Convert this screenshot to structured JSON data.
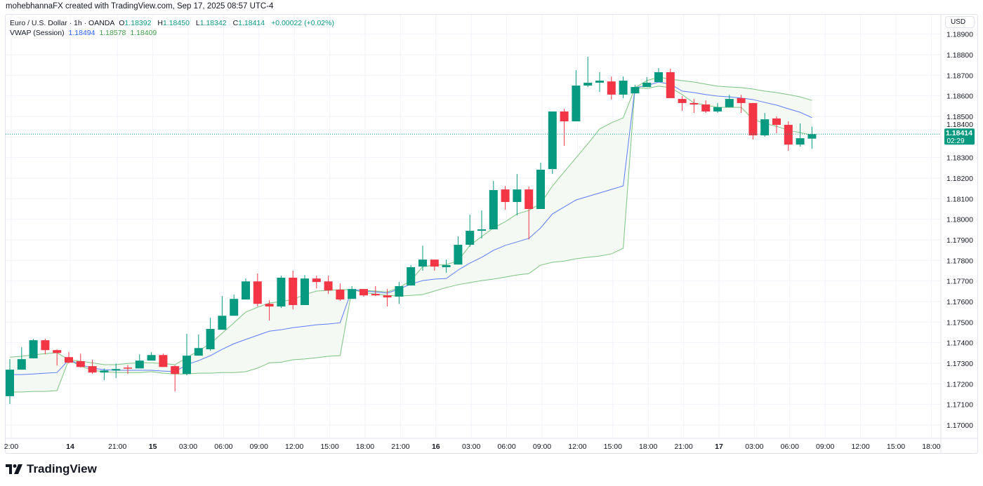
{
  "credit": "mohebhannaFX created with TradingView.com, Sep 17, 2025 08:57 UTC-4",
  "legend": {
    "symbol": "Euro / U.S. Dollar · 1h · OANDA",
    "o_label": "O",
    "o": "1.18392",
    "h_label": "H",
    "h": "1.18450",
    "l_label": "L",
    "l": "1.18342",
    "c_label": "C",
    "c": "1.18414",
    "change": "+0.00022 (+0.02%)",
    "indicator": "VWAP (Session)",
    "vwap": "1.18494",
    "upper": "1.18578",
    "lower": "1.18409"
  },
  "currency_button": "USD",
  "logo_text": "TradingView",
  "colors": {
    "up": "#089981",
    "down": "#f23645",
    "vwap": "#5b7cf7",
    "bands": "#7cc47f",
    "band_fill": "#f3faf2"
  },
  "chart_data": {
    "type": "candlestick",
    "symbol": "EURUSD",
    "interval": "1h",
    "ylim": [
      1.1695,
      1.18935
    ],
    "grid": true,
    "y_ticks": [
      "1.17000",
      "1.17100",
      "1.17200",
      "1.17300",
      "1.17400",
      "1.17500",
      "1.17600",
      "1.17700",
      "1.17800",
      "1.17900",
      "1.18000",
      "1.18100",
      "1.18200",
      "1.18300",
      "1.18400",
      "1.18500",
      "1.18600",
      "1.18700",
      "1.18800",
      "1.18900"
    ],
    "x_ticks": [
      {
        "label": "2:00",
        "bar": 0,
        "bold": false
      },
      {
        "label": "14",
        "bar": 5,
        "bold": true
      },
      {
        "label": "21:00",
        "bar": 9,
        "bold": false
      },
      {
        "label": "15",
        "bar": 12,
        "bold": true
      },
      {
        "label": "03:00",
        "bar": 15,
        "bold": false
      },
      {
        "label": "06:00",
        "bar": 18,
        "bold": false
      },
      {
        "label": "09:00",
        "bar": 21,
        "bold": false
      },
      {
        "label": "12:00",
        "bar": 24,
        "bold": false
      },
      {
        "label": "15:00",
        "bar": 27,
        "bold": false
      },
      {
        "label": "18:00",
        "bar": 30,
        "bold": false
      },
      {
        "label": "21:00",
        "bar": 33,
        "bold": false
      },
      {
        "label": "16",
        "bar": 36,
        "bold": true
      },
      {
        "label": "03:00",
        "bar": 39,
        "bold": false
      },
      {
        "label": "06:00",
        "bar": 42,
        "bold": false
      },
      {
        "label": "09:00",
        "bar": 45,
        "bold": false
      },
      {
        "label": "12:00",
        "bar": 48,
        "bold": false
      },
      {
        "label": "15:00",
        "bar": 51,
        "bold": false
      },
      {
        "label": "18:00",
        "bar": 54,
        "bold": false
      },
      {
        "label": "21:00",
        "bar": 57,
        "bold": false
      },
      {
        "label": "17",
        "bar": 60,
        "bold": true
      },
      {
        "label": "03:00",
        "bar": 63,
        "bold": false
      },
      {
        "label": "06:00",
        "bar": 66,
        "bold": false
      },
      {
        "label": "09:00",
        "bar": 69,
        "bold": false
      },
      {
        "label": "12:00",
        "bar": 72,
        "bold": false
      },
      {
        "label": "15:00",
        "bar": 75,
        "bold": false
      },
      {
        "label": "18:00",
        "bar": 78,
        "bold": false
      }
    ],
    "ohlc_fields": [
      "open",
      "high",
      "low",
      "close"
    ],
    "candles": [
      [
        1.1714,
        1.1732,
        1.17102,
        1.17269
      ],
      [
        1.17269,
        1.17378,
        1.17269,
        1.1732
      ],
      [
        1.17324,
        1.17418,
        1.17324,
        1.17412
      ],
      [
        1.17412,
        1.17419,
        1.17344,
        1.17364
      ],
      [
        1.17364,
        1.17367,
        1.17289,
        1.1735
      ],
      [
        1.1733,
        1.17354,
        1.17299,
        1.17303
      ],
      [
        1.1731,
        1.17347,
        1.17279,
        1.17282
      ],
      [
        1.17286,
        1.17317,
        1.17248,
        1.17255
      ],
      [
        1.17255,
        1.17275,
        1.17218,
        1.17265
      ],
      [
        1.17265,
        1.17299,
        1.17228,
        1.17272
      ],
      [
        1.17279,
        1.17292,
        1.17248,
        1.17275
      ],
      [
        1.17275,
        1.17344,
        1.17275,
        1.17313
      ],
      [
        1.17313,
        1.17354,
        1.17313,
        1.1734
      ],
      [
        1.1734,
        1.17347,
        1.17282,
        1.17282
      ],
      [
        1.17286,
        1.1729,
        1.17163,
        1.17248
      ],
      [
        1.17248,
        1.17443,
        1.17241,
        1.17337
      ],
      [
        1.17337,
        1.1744,
        1.17337,
        1.17374
      ],
      [
        1.17368,
        1.17521,
        1.17361,
        1.17467
      ],
      [
        1.17463,
        1.17627,
        1.17463,
        1.17531
      ],
      [
        1.17531,
        1.17634,
        1.17531,
        1.17613
      ],
      [
        1.1761,
        1.17712,
        1.1761,
        1.17698
      ],
      [
        1.17698,
        1.17736,
        1.17576,
        1.17589
      ],
      [
        1.17589,
        1.17606,
        1.17508,
        1.17576
      ],
      [
        1.17576,
        1.17726,
        1.17569,
        1.17716
      ],
      [
        1.17716,
        1.1775,
        1.17562,
        1.17583
      ],
      [
        1.17583,
        1.17729,
        1.17583,
        1.17712
      ],
      [
        1.17712,
        1.17726,
        1.17664,
        1.17695
      ],
      [
        1.17698,
        1.17726,
        1.17637,
        1.17654
      ],
      [
        1.17658,
        1.17688,
        1.17603,
        1.1761
      ],
      [
        1.17613,
        1.17675,
        1.17613,
        1.17661
      ],
      [
        1.17661,
        1.17661,
        1.17624,
        1.1763
      ],
      [
        1.17637,
        1.17675,
        1.17627,
        1.1763
      ],
      [
        1.1763,
        1.17661,
        1.17576,
        1.1762
      ],
      [
        1.17624,
        1.17695,
        1.17589,
        1.17675
      ],
      [
        1.17678,
        1.17777,
        1.17678,
        1.17767
      ],
      [
        1.1777,
        1.17872,
        1.1775,
        1.17804
      ],
      [
        1.17804,
        1.17804,
        1.1775,
        1.1777
      ],
      [
        1.17767,
        1.17804,
        1.1774,
        1.17777
      ],
      [
        1.1778,
        1.17917,
        1.1778,
        1.17876
      ],
      [
        1.17876,
        1.18022,
        1.17866,
        1.17944
      ],
      [
        1.17944,
        1.18043,
        1.17907,
        1.17951
      ],
      [
        1.17951,
        1.18186,
        1.17951,
        1.18142
      ],
      [
        1.18145,
        1.18162,
        1.18046,
        1.18084
      ],
      [
        1.18084,
        1.1822,
        1.18019,
        1.18145
      ],
      [
        1.18145,
        1.18159,
        1.17903,
        1.1805
      ],
      [
        1.1805,
        1.18275,
        1.1805,
        1.18241
      ],
      [
        1.18244,
        1.18524,
        1.1822,
        1.18524
      ],
      [
        1.18524,
        1.18537,
        1.18357,
        1.18476
      ],
      [
        1.18476,
        1.18725,
        1.18476,
        1.1865
      ],
      [
        1.1865,
        1.1879,
        1.18643,
        1.18664
      ],
      [
        1.18664,
        1.18715,
        1.18619,
        1.18674
      ],
      [
        1.1867,
        1.18694,
        1.18582,
        1.18606
      ],
      [
        1.18606,
        1.18694,
        1.18589,
        1.18674
      ],
      [
        1.18612,
        1.18653,
        1.18612,
        1.18643
      ],
      [
        1.18643,
        1.18691,
        1.18643,
        1.18664
      ],
      [
        1.18667,
        1.18735,
        1.18667,
        1.18715
      ],
      [
        1.18715,
        1.18732,
        1.18589,
        1.18589
      ],
      [
        1.18585,
        1.18599,
        1.18527,
        1.18565
      ],
      [
        1.18565,
        1.18585,
        1.18517,
        1.18558
      ],
      [
        1.18558,
        1.18578,
        1.18517,
        1.18524
      ],
      [
        1.18524,
        1.18565,
        1.18517,
        1.18545
      ],
      [
        1.18545,
        1.18605,
        1.18545,
        1.18585
      ],
      [
        1.18589,
        1.18605,
        1.18517,
        1.18565
      ],
      [
        1.18565,
        1.18565,
        1.18387,
        1.18408
      ],
      [
        1.18408,
        1.18517,
        1.18401,
        1.18486
      ],
      [
        1.1849,
        1.185,
        1.18418,
        1.18459
      ],
      [
        1.18459,
        1.18476,
        1.18333,
        1.18363
      ],
      [
        1.18363,
        1.18466,
        1.18353,
        1.18394
      ],
      [
        1.18392,
        1.1845,
        1.18342,
        1.18414
      ]
    ],
    "vwap": [
      1.17245,
      1.17245,
      1.17248,
      1.17252,
      1.17255,
      1.17317,
      1.17293,
      1.17276,
      1.17269,
      1.17266,
      1.17266,
      1.17266,
      1.17266,
      1.17262,
      1.17259,
      1.17293,
      1.17313,
      1.17337,
      1.17368,
      1.17395,
      1.17416,
      1.17436,
      1.17456,
      1.17463,
      1.17473,
      1.1748,
      1.17487,
      1.17491,
      1.17497,
      1.17658,
      1.17651,
      1.17647,
      1.17641,
      1.17661,
      1.17685,
      1.17702,
      1.17709,
      1.17712,
      1.17753,
      1.17787,
      1.17815,
      1.17849,
      1.17873,
      1.1789,
      1.17907,
      1.17958,
      1.18026,
      1.1806,
      1.18094,
      1.18111,
      1.18128,
      1.18145,
      1.18162,
      1.1864,
      1.1865,
      1.18667,
      1.18657,
      1.18623,
      1.18616,
      1.18606,
      1.18599,
      1.18595,
      1.18589,
      1.18582,
      1.18568,
      1.18555,
      1.18537,
      1.1852,
      1.18494
    ],
    "upper_band": [
      1.1733,
      1.17334,
      1.17341,
      1.17347,
      1.17351,
      1.17317,
      1.1731,
      1.17302,
      1.17293,
      1.17293,
      1.17299,
      1.17302,
      1.17302,
      1.17299,
      1.17293,
      1.17327,
      1.17361,
      1.17395,
      1.17446,
      1.17497,
      1.17549,
      1.17572,
      1.17593,
      1.176,
      1.1761,
      1.17634,
      1.17651,
      1.17654,
      1.17658,
      1.17658,
      1.17654,
      1.17651,
      1.17647,
      1.17668,
      1.17702,
      1.1777,
      1.17777,
      1.1778,
      1.17798,
      1.17873,
      1.17916,
      1.17958,
      1.17988,
      1.18026,
      1.18043,
      1.18077,
      1.18162,
      1.18231,
      1.18299,
      1.18367,
      1.18439,
      1.18469,
      1.18493,
      1.1864,
      1.18674,
      1.18691,
      1.18681,
      1.18674,
      1.18667,
      1.18657,
      1.18647,
      1.18643,
      1.1864,
      1.18633,
      1.18623,
      1.18616,
      1.18606,
      1.18595,
      1.18578
    ],
    "lower_band": [
      1.1716,
      1.1716,
      1.17163,
      1.17163,
      1.17167,
      1.17317,
      1.17286,
      1.17266,
      1.17259,
      1.17255,
      1.17255,
      1.17255,
      1.17259,
      1.17252,
      1.17248,
      1.17248,
      1.17252,
      1.17252,
      1.17255,
      1.17255,
      1.17259,
      1.17276,
      1.17302,
      1.17305,
      1.17317,
      1.17321,
      1.17327,
      1.17334,
      1.17337,
      1.17658,
      1.17644,
      1.17637,
      1.1763,
      1.17627,
      1.1763,
      1.17634,
      1.17651,
      1.17668,
      1.17682,
      1.17692,
      1.17702,
      1.17709,
      1.17719,
      1.17729,
      1.17736,
      1.17777,
      1.17791,
      1.17797,
      1.17808,
      1.17815,
      1.17821,
      1.17832,
      1.17859,
      1.1864,
      1.18636,
      1.18647,
      1.1864,
      1.18606,
      1.18565,
      1.18555,
      1.18544,
      1.18544,
      1.18544,
      1.18486,
      1.18466,
      1.18452,
      1.18432,
      1.18421,
      1.18409
    ],
    "last_price": {
      "price": 1.18414,
      "label": "1.18414",
      "countdown": "02:29"
    }
  }
}
